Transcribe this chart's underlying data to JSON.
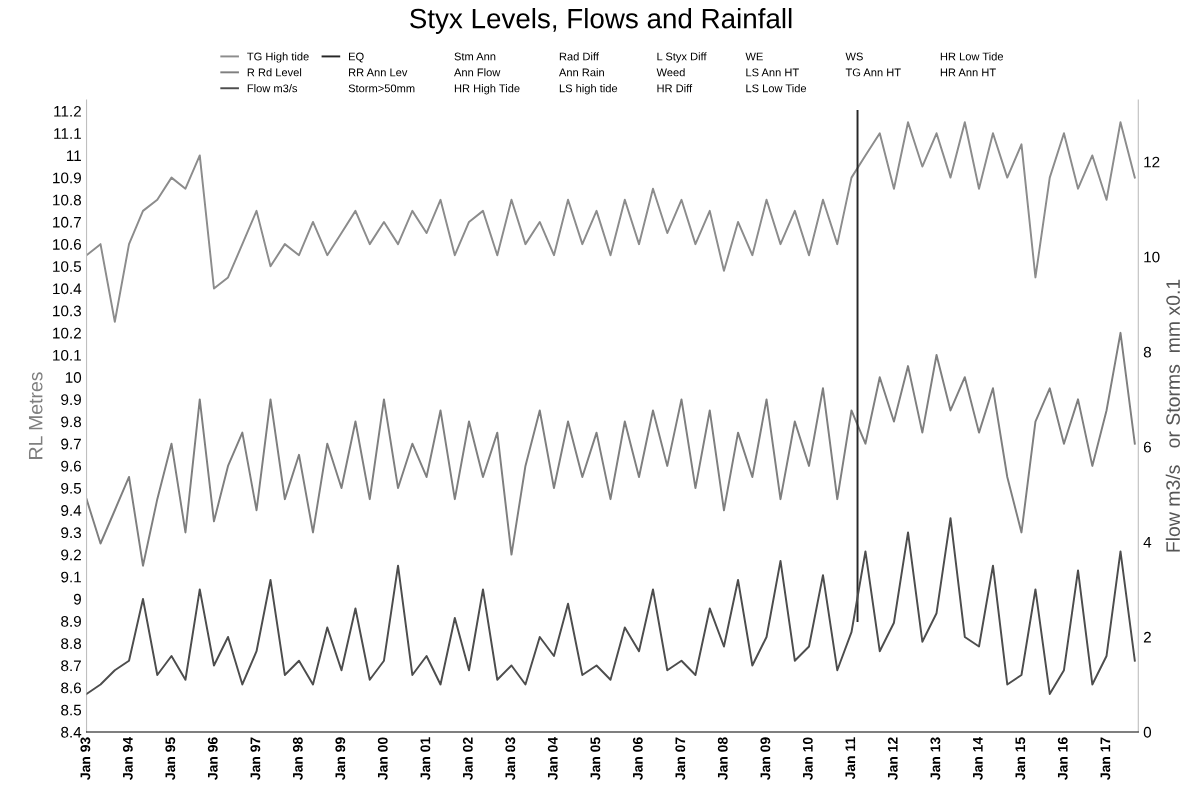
{
  "chart_data": {
    "type": "line",
    "title": "Styx Levels, Flows and Rainfall",
    "ylabel": "RL Metres",
    "y2label": "Flow m3/s   or Storms  mm x0.1",
    "x": [
      "1993-01",
      "1993-05",
      "1993-09",
      "1994-01",
      "1994-05",
      "1994-09",
      "1995-01",
      "1995-05",
      "1995-09",
      "1996-01",
      "1996-05",
      "1996-09",
      "1997-01",
      "1997-05",
      "1997-09",
      "1998-01",
      "1998-05",
      "1998-09",
      "1999-01",
      "1999-05",
      "1999-09",
      "2000-01",
      "2000-05",
      "2000-09",
      "2001-01",
      "2001-05",
      "2001-09",
      "2002-01",
      "2002-05",
      "2002-09",
      "2003-01",
      "2003-05",
      "2003-09",
      "2004-01",
      "2004-05",
      "2004-09",
      "2005-01",
      "2005-05",
      "2005-09",
      "2006-01",
      "2006-05",
      "2006-09",
      "2007-01",
      "2007-05",
      "2007-09",
      "2008-01",
      "2008-05",
      "2008-09",
      "2009-01",
      "2009-05",
      "2009-09",
      "2010-01",
      "2010-05",
      "2010-09",
      "2011-01",
      "2011-05",
      "2011-09",
      "2012-01",
      "2012-05",
      "2012-09",
      "2013-01",
      "2013-05",
      "2013-09",
      "2014-01",
      "2014-05",
      "2014-09",
      "2015-01",
      "2015-05",
      "2015-09",
      "2016-01",
      "2016-05",
      "2016-09",
      "2017-01",
      "2017-05",
      "2017-09"
    ],
    "series": [
      {
        "name": "TG High tide",
        "color": "#8c8c8c",
        "values": [
          10.55,
          10.6,
          10.25,
          10.6,
          10.75,
          10.8,
          10.9,
          10.85,
          11.0,
          10.4,
          10.45,
          10.6,
          10.75,
          10.5,
          10.6,
          10.55,
          10.7,
          10.55,
          10.65,
          10.75,
          10.6,
          10.7,
          10.6,
          10.75,
          10.65,
          10.8,
          10.55,
          10.7,
          10.75,
          10.55,
          10.8,
          10.6,
          10.7,
          10.55,
          10.8,
          10.6,
          10.75,
          10.55,
          10.8,
          10.6,
          10.85,
          10.65,
          10.8,
          10.6,
          10.75,
          10.48,
          10.7,
          10.55,
          10.8,
          10.6,
          10.75,
          10.55,
          10.8,
          10.6,
          10.9,
          11.0,
          11.1,
          10.85,
          11.15,
          10.95,
          11.1,
          10.9,
          11.15,
          10.85,
          11.1,
          10.9,
          11.05,
          10.45,
          10.9,
          11.1,
          10.85,
          11.0,
          10.8,
          11.15,
          10.9
        ]
      },
      {
        "name": "R Rd Level",
        "color": "#7f7f7f",
        "values": [
          9.45,
          9.25,
          9.4,
          9.55,
          9.15,
          9.45,
          9.7,
          9.3,
          9.9,
          9.35,
          9.6,
          9.75,
          9.4,
          9.9,
          9.45,
          9.65,
          9.3,
          9.7,
          9.5,
          9.8,
          9.45,
          9.9,
          9.5,
          9.7,
          9.55,
          9.85,
          9.45,
          9.8,
          9.55,
          9.75,
          9.2,
          9.6,
          9.85,
          9.5,
          9.8,
          9.55,
          9.75,
          9.45,
          9.8,
          9.55,
          9.85,
          9.6,
          9.9,
          9.5,
          9.85,
          9.4,
          9.75,
          9.55,
          9.9,
          9.45,
          9.8,
          9.6,
          9.95,
          9.45,
          9.85,
          9.7,
          10,
          9.8,
          10.05,
          9.75,
          10.1,
          9.85,
          10,
          9.75,
          9.95,
          9.55,
          9.3,
          9.8,
          9.95,
          9.7,
          9.9,
          9.6,
          9.85,
          10.2,
          9.7
        ]
      },
      {
        "name": "Flow m3/s",
        "color": "#4d4d4d",
        "axis": "y2",
        "values": [
          0.8,
          1.0,
          1.3,
          1.5,
          2.8,
          1.2,
          1.6,
          1.1,
          3.0,
          1.4,
          2.0,
          1.0,
          1.7,
          3.2,
          1.2,
          1.5,
          1.0,
          2.2,
          1.3,
          2.6,
          1.1,
          1.5,
          3.5,
          1.2,
          1.6,
          1.0,
          2.4,
          1.3,
          3.0,
          1.1,
          1.4,
          1.0,
          2.0,
          1.6,
          2.7,
          1.2,
          1.4,
          1.1,
          2.2,
          1.7,
          3.0,
          1.3,
          1.5,
          1.2,
          2.6,
          1.8,
          3.2,
          1.4,
          2.0,
          3.6,
          1.5,
          1.8,
          3.3,
          1.3,
          2.1,
          3.8,
          1.7,
          2.3,
          4.2,
          1.9,
          2.5,
          4.5,
          2.0,
          1.8,
          3.5,
          1.0,
          1.2,
          3.0,
          0.8,
          1.3,
          3.4,
          1.0,
          1.6,
          3.8,
          1.5
        ]
      },
      {
        "name": "EQ",
        "color": "#262626",
        "x": [
          "2011-02-22",
          "2011-02-22"
        ],
        "values": [
          11.2,
          8.9
        ]
      }
    ],
    "annotations": [
      "RR Ann Lev",
      "Storm>50mm",
      "Stm Ann",
      "Ann Flow",
      "HR High Tide",
      "Rad Diff",
      "Ann Rain",
      "LS high tide",
      "L Styx Diff",
      "Weed",
      "HR Diff",
      "WE",
      "LS Ann HT",
      "LS Low Tide",
      "WS",
      "TG Ann HT",
      "HR Low Tide",
      "HR Ann HT"
    ],
    "xlim": [
      "1993-01-01",
      "2017-10-01"
    ],
    "xticks": [
      {
        "value": "1993-01-01",
        "label": "Jan 93"
      },
      {
        "value": "1994-01-01",
        "label": "Jan 94"
      },
      {
        "value": "1995-01-01",
        "label": "Jan 95"
      },
      {
        "value": "1996-01-01",
        "label": "Jan 96"
      },
      {
        "value": "1997-01-01",
        "label": "Jan 97"
      },
      {
        "value": "1998-01-01",
        "label": "Jan 98"
      },
      {
        "value": "1999-01-01",
        "label": "Jan 99"
      },
      {
        "value": "2000-01-01",
        "label": "Jan 00"
      },
      {
        "value": "2001-01-01",
        "label": "Jan 01"
      },
      {
        "value": "2002-01-01",
        "label": "Jan 02"
      },
      {
        "value": "2003-01-01",
        "label": "Jan 03"
      },
      {
        "value": "2004-01-01",
        "label": "Jan 04"
      },
      {
        "value": "2005-01-01",
        "label": "Jan 05"
      },
      {
        "value": "2006-01-01",
        "label": "Jan 06"
      },
      {
        "value": "2007-01-01",
        "label": "Jan 07"
      },
      {
        "value": "2008-01-01",
        "label": "Jan 08"
      },
      {
        "value": "2009-01-01",
        "label": "Jan 09"
      },
      {
        "value": "2010-01-01",
        "label": "Jan 10"
      },
      {
        "value": "2011-01-01",
        "label": "Jan 11"
      },
      {
        "value": "2012-01-01",
        "label": "Jan 12"
      },
      {
        "value": "2013-01-01",
        "label": "Jan 13"
      },
      {
        "value": "2014-01-01",
        "label": "Jan 14"
      },
      {
        "value": "2015-01-01",
        "label": "Jan 15"
      },
      {
        "value": "2016-01-01",
        "label": "Jan 16"
      },
      {
        "value": "2017-01-01",
        "label": "Jan 17"
      }
    ],
    "ylim": [
      8.4,
      11.25
    ],
    "yticks": [
      8.4,
      8.5,
      8.6,
      8.7,
      8.8,
      8.9,
      9,
      9.1,
      9.2,
      9.3,
      9.4,
      9.5,
      9.6,
      9.7,
      9.8,
      9.9,
      10,
      10.1,
      10.2,
      10.3,
      10.4,
      10.5,
      10.6,
      10.7,
      10.8,
      10.9,
      11,
      11.1,
      11.2
    ],
    "y2lim": [
      0,
      13.3
    ],
    "y2ticks": [
      0,
      2,
      4,
      6,
      8,
      10,
      12
    ],
    "grid": false,
    "legend": "top",
    "marker": "none",
    "line_style": "solid"
  }
}
